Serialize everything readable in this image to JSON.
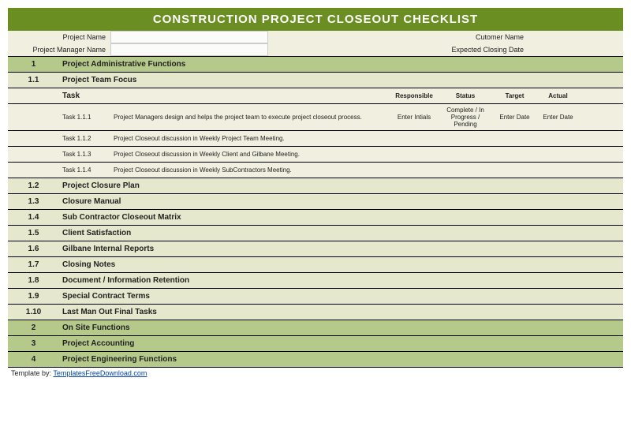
{
  "title": "CONSTRUCTION PROJECT CLOSEOUT CHECKLIST",
  "meta": {
    "project_name_label": "Project Name",
    "project_manager_label": "Project Manager Name",
    "customer_name_label": "Cutomer Name",
    "expected_closing_label": "Expected Closing Date"
  },
  "cols": {
    "task": "Task",
    "responsible": "Responsible",
    "status": "Status",
    "target": "Target",
    "actual": "Actual"
  },
  "sec1": {
    "num": "1",
    "label": "Project Administrative Functions"
  },
  "sec1_1": {
    "num": "1.1",
    "label": "Project Team Focus"
  },
  "tasks": {
    "0": {
      "num": "Task 1.1.1",
      "desc": "Project Managers design and helps the project team to execute project closeout process.",
      "resp": "Enter Intials",
      "status": "Complete / In Progress / Pending",
      "target": "Enter Date",
      "actual": "Enter Date"
    },
    "1": {
      "num": "Task 1.1.2",
      "desc": "Project Closeout discussion in Weekly Project Team Meeting."
    },
    "2": {
      "num": "Task 1.1.3",
      "desc": "Project Closeout discussion in Weekly Client and Gilbane Meeting."
    },
    "3": {
      "num": "Task 1.1.4",
      "desc": "Project Closeout discussion in Weekly SubContractors Meeting."
    }
  },
  "secs": {
    "12": {
      "num": "1.2",
      "label": "Project Closure Plan"
    },
    "13": {
      "num": "1.3",
      "label": "Closure Manual"
    },
    "14": {
      "num": "1.4",
      "label": "Sub Contractor Closeout Matrix"
    },
    "15": {
      "num": "1.5",
      "label": "Client Satisfaction"
    },
    "16": {
      "num": "1.6",
      "label": "Gilbane Internal Reports"
    },
    "17": {
      "num": "1.7",
      "label": "Closing Notes"
    },
    "18": {
      "num": "1.8",
      "label": "Document / Information Retention"
    },
    "19": {
      "num": "1.9",
      "label": "Special Contract Terms"
    },
    "110": {
      "num": "1.10",
      "label": "Last Man Out Final Tasks"
    }
  },
  "majors": {
    "2": {
      "num": "2",
      "label": "On Site Functions"
    },
    "3": {
      "num": "3",
      "label": "Project Accounting"
    },
    "4": {
      "num": "4",
      "label": "Project Engineering Functions"
    }
  },
  "footer": {
    "prefix": "Template by: ",
    "link": "TemplatesFreeDownload.com"
  }
}
